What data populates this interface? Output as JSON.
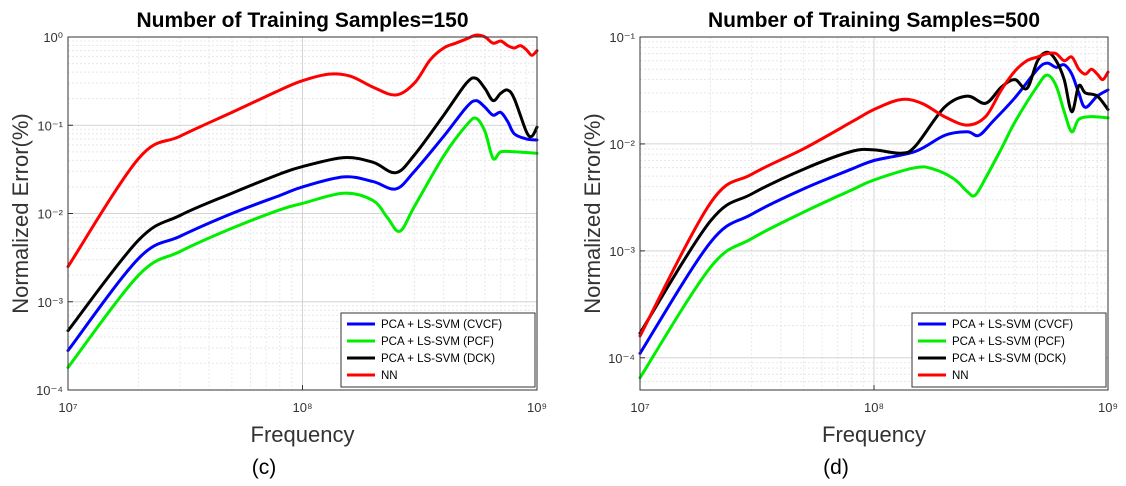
{
  "colors": {
    "blue": "#0000ff",
    "green": "#00ee00",
    "black": "#000000",
    "red": "#ff0000"
  },
  "chart_data": [
    {
      "type": "line",
      "panel_label": "(c)",
      "title": "Number of Training Samples=150",
      "xlabel": "Frequency",
      "ylabel": "Normalized Error(%)",
      "xscale": "log",
      "yscale": "log",
      "xlim": [
        10000000,
        1000000000
      ],
      "ylim": [
        0.0001,
        1
      ],
      "x_ticks": [
        "10^7",
        "10^8",
        "10^9"
      ],
      "y_ticks": [
        "10^-4",
        "10^-3",
        "10^-2",
        "10^-1",
        "10^0"
      ],
      "grid": true,
      "legend_position": "bottom-right",
      "series": [
        {
          "name": "PCA + LS-SVM (CVCF)",
          "color": "#0000ff",
          "points": [
            [
              10000000,
              0.00028
            ],
            [
              20000000,
              0.0031
            ],
            [
              30000000,
              0.0055
            ],
            [
              50000000,
              0.01
            ],
            [
              80000000,
              0.016
            ],
            [
              100000000,
              0.02
            ],
            [
              150000000,
              0.026
            ],
            [
              200000000,
              0.023
            ],
            [
              250000000,
              0.019
            ],
            [
              300000000,
              0.03
            ],
            [
              400000000,
              0.075
            ],
            [
              500000000,
              0.16
            ],
            [
              550000000,
              0.19
            ],
            [
              600000000,
              0.16
            ],
            [
              650000000,
              0.13
            ],
            [
              700000000,
              0.14
            ],
            [
              750000000,
              0.11
            ],
            [
              800000000,
              0.08
            ],
            [
              900000000,
              0.07
            ],
            [
              1000000000,
              0.068
            ]
          ]
        },
        {
          "name": "PCA + LS-SVM (PCF)",
          "color": "#00ee00",
          "points": [
            [
              10000000,
              0.00018
            ],
            [
              20000000,
              0.002
            ],
            [
              30000000,
              0.0037
            ],
            [
              50000000,
              0.0068
            ],
            [
              80000000,
              0.011
            ],
            [
              100000000,
              0.013
            ],
            [
              150000000,
              0.017
            ],
            [
              200000000,
              0.014
            ],
            [
              230000000,
              0.009
            ],
            [
              260000000,
              0.0063
            ],
            [
              300000000,
              0.012
            ],
            [
              400000000,
              0.045
            ],
            [
              500000000,
              0.1
            ],
            [
              550000000,
              0.12
            ],
            [
              600000000,
              0.085
            ],
            [
              650000000,
              0.042
            ],
            [
              700000000,
              0.05
            ],
            [
              800000000,
              0.05
            ],
            [
              1000000000,
              0.048
            ]
          ]
        },
        {
          "name": "PCA + LS-SVM (DCK)",
          "color": "#000000",
          "points": [
            [
              10000000,
              0.00047
            ],
            [
              20000000,
              0.005
            ],
            [
              30000000,
              0.0095
            ],
            [
              50000000,
              0.017
            ],
            [
              80000000,
              0.028
            ],
            [
              100000000,
              0.034
            ],
            [
              150000000,
              0.043
            ],
            [
              200000000,
              0.038
            ],
            [
              250000000,
              0.029
            ],
            [
              300000000,
              0.046
            ],
            [
              400000000,
              0.13
            ],
            [
              500000000,
              0.3
            ],
            [
              550000000,
              0.34
            ],
            [
              600000000,
              0.26
            ],
            [
              650000000,
              0.19
            ],
            [
              700000000,
              0.23
            ],
            [
              750000000,
              0.25
            ],
            [
              800000000,
              0.2
            ],
            [
              900000000,
              0.085
            ],
            [
              950000000,
              0.075
            ],
            [
              1000000000,
              0.095
            ]
          ]
        },
        {
          "name": "NN",
          "color": "#ff0000",
          "points": [
            [
              10000000,
              0.0025
            ],
            [
              20000000,
              0.042
            ],
            [
              30000000,
              0.075
            ],
            [
              50000000,
              0.14
            ],
            [
              80000000,
              0.25
            ],
            [
              100000000,
              0.32
            ],
            [
              130000000,
              0.38
            ],
            [
              160000000,
              0.36
            ],
            [
              200000000,
              0.27
            ],
            [
              250000000,
              0.22
            ],
            [
              300000000,
              0.3
            ],
            [
              350000000,
              0.55
            ],
            [
              400000000,
              0.75
            ],
            [
              450000000,
              0.85
            ],
            [
              500000000,
              0.95
            ],
            [
              550000000,
              1.05
            ],
            [
              600000000,
              1.0
            ],
            [
              650000000,
              0.85
            ],
            [
              700000000,
              0.9
            ],
            [
              750000000,
              0.8
            ],
            [
              800000000,
              0.75
            ],
            [
              850000000,
              0.8
            ],
            [
              900000000,
              0.72
            ],
            [
              950000000,
              0.62
            ],
            [
              1000000000,
              0.7
            ]
          ]
        }
      ]
    },
    {
      "type": "line",
      "panel_label": "(d)",
      "title": "Number of Training Samples=500",
      "xlabel": "Frequency",
      "ylabel": "Normalized Error(%)",
      "xscale": "log",
      "yscale": "log",
      "xlim": [
        10000000,
        1000000000
      ],
      "ylim": [
        5e-05,
        0.1
      ],
      "x_ticks": [
        "10^7",
        "10^8",
        "10^9"
      ],
      "y_ticks": [
        "10^-4",
        "10^-3",
        "10^-2",
        "10^-1"
      ],
      "grid": true,
      "legend_position": "bottom-right",
      "series": [
        {
          "name": "PCA + LS-SVM (CVCF)",
          "color": "#0000ff",
          "points": [
            [
              10000000,
              0.00011
            ],
            [
              20000000,
              0.0012
            ],
            [
              30000000,
              0.0022
            ],
            [
              50000000,
              0.0038
            ],
            [
              80000000,
              0.0058
            ],
            [
              100000000,
              0.007
            ],
            [
              150000000,
              0.0085
            ],
            [
              200000000,
              0.012
            ],
            [
              250000000,
              0.013
            ],
            [
              280000000,
              0.012
            ],
            [
              320000000,
              0.016
            ],
            [
              400000000,
              0.027
            ],
            [
              500000000,
              0.05
            ],
            [
              550000000,
              0.057
            ],
            [
              600000000,
              0.052
            ],
            [
              650000000,
              0.055
            ],
            [
              700000000,
              0.045
            ],
            [
              750000000,
              0.03
            ],
            [
              800000000,
              0.022
            ],
            [
              900000000,
              0.028
            ],
            [
              1000000000,
              0.032
            ]
          ]
        },
        {
          "name": "PCA + LS-SVM (PCF)",
          "color": "#00ee00",
          "points": [
            [
              10000000,
              6.5e-05
            ],
            [
              20000000,
              0.0007
            ],
            [
              30000000,
              0.0013
            ],
            [
              50000000,
              0.0023
            ],
            [
              80000000,
              0.0037
            ],
            [
              100000000,
              0.0046
            ],
            [
              150000000,
              0.006
            ],
            [
              180000000,
              0.0058
            ],
            [
              220000000,
              0.0047
            ],
            [
              250000000,
              0.0036
            ],
            [
              270000000,
              0.0033
            ],
            [
              300000000,
              0.0048
            ],
            [
              350000000,
              0.009
            ],
            [
              400000000,
              0.016
            ],
            [
              500000000,
              0.035
            ],
            [
              550000000,
              0.044
            ],
            [
              600000000,
              0.035
            ],
            [
              650000000,
              0.02
            ],
            [
              700000000,
              0.013
            ],
            [
              750000000,
              0.017
            ],
            [
              850000000,
              0.018
            ],
            [
              1000000000,
              0.0175
            ]
          ]
        },
        {
          "name": "PCA + LS-SVM (DCK)",
          "color": "#000000",
          "points": [
            [
              10000000,
              0.00017
            ],
            [
              20000000,
              0.0019
            ],
            [
              30000000,
              0.0034
            ],
            [
              50000000,
              0.0058
            ],
            [
              80000000,
              0.0085
            ],
            [
              100000000,
              0.0088
            ],
            [
              130000000,
              0.0082
            ],
            [
              150000000,
              0.0095
            ],
            [
              200000000,
              0.022
            ],
            [
              250000000,
              0.028
            ],
            [
              300000000,
              0.024
            ],
            [
              350000000,
              0.034
            ],
            [
              400000000,
              0.04
            ],
            [
              450000000,
              0.033
            ],
            [
              500000000,
              0.06
            ],
            [
              550000000,
              0.072
            ],
            [
              600000000,
              0.06
            ],
            [
              650000000,
              0.04
            ],
            [
              700000000,
              0.02
            ],
            [
              750000000,
              0.035
            ],
            [
              800000000,
              0.03
            ],
            [
              900000000,
              0.028
            ],
            [
              1000000000,
              0.021
            ]
          ]
        },
        {
          "name": "NN",
          "color": "#ff0000",
          "points": [
            [
              10000000,
              0.00016
            ],
            [
              20000000,
              0.0028
            ],
            [
              30000000,
              0.0052
            ],
            [
              50000000,
              0.009
            ],
            [
              80000000,
              0.016
            ],
            [
              100000000,
              0.021
            ],
            [
              130000000,
              0.026
            ],
            [
              160000000,
              0.024
            ],
            [
              200000000,
              0.018
            ],
            [
              250000000,
              0.015
            ],
            [
              300000000,
              0.018
            ],
            [
              350000000,
              0.032
            ],
            [
              400000000,
              0.048
            ],
            [
              450000000,
              0.06
            ],
            [
              500000000,
              0.065
            ],
            [
              550000000,
              0.07
            ],
            [
              600000000,
              0.07
            ],
            [
              650000000,
              0.06
            ],
            [
              700000000,
              0.065
            ],
            [
              750000000,
              0.05
            ],
            [
              800000000,
              0.045
            ],
            [
              850000000,
              0.05
            ],
            [
              900000000,
              0.045
            ],
            [
              950000000,
              0.04
            ],
            [
              1000000000,
              0.047
            ]
          ]
        }
      ]
    }
  ]
}
